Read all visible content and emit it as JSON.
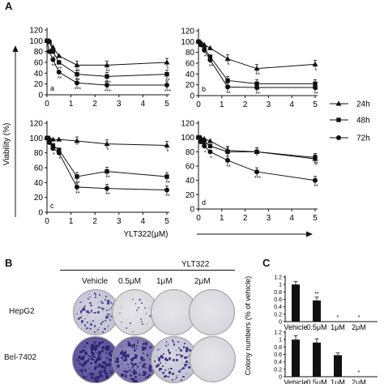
{
  "panel_a": {
    "letter": "A",
    "ylabel": "Viability (%)",
    "xlabel": "YLT322(μM)",
    "legend": [
      "24h",
      "48h",
      "72h"
    ]
  },
  "panel_b": {
    "letter": "B",
    "compound": "YLT322",
    "columns": [
      "Vehicle",
      "0.5μM",
      "1μM",
      "2μM"
    ],
    "rows": [
      "HepG2",
      "Bel-7402"
    ],
    "colony_density": {
      "HepG2": [
        "moderate",
        "sparse",
        "none",
        "none"
      ],
      "Bel-7402": [
        "dense",
        "dense",
        "moderate",
        "none"
      ]
    }
  },
  "panel_c": {
    "letter": "C",
    "ylabel": "Colony numbers (% of vehicle)"
  },
  "chart_data": [
    {
      "type": "line",
      "panel": "a",
      "x": [
        0,
        0.1,
        0.25,
        0.5,
        1.25,
        2.5,
        5
      ],
      "xlim": [
        0,
        5
      ],
      "ylim": [
        0,
        120
      ],
      "xticks": [
        "0",
        "1",
        "2",
        "3",
        "4",
        "5"
      ],
      "yticks": [
        "0",
        "20",
        "40",
        "60",
        "80",
        "100",
        "120"
      ],
      "series": [
        {
          "name": "24h",
          "marker": "triangle",
          "values": [
            100,
            100,
            88,
            72,
            55,
            55,
            60
          ],
          "sig": [
            "",
            "",
            "*",
            "*",
            "**",
            "**",
            "*"
          ]
        },
        {
          "name": "48h",
          "marker": "square",
          "values": [
            100,
            98,
            80,
            60,
            38,
            34,
            38
          ],
          "sig": [
            "",
            "",
            "*",
            "**",
            "**",
            "***",
            "**"
          ]
        },
        {
          "name": "72h",
          "marker": "circle",
          "values": [
            100,
            80,
            65,
            42,
            22,
            18,
            18
          ],
          "sig": [
            "",
            "",
            "**",
            "**",
            "***",
            "***",
            "***"
          ]
        }
      ]
    },
    {
      "type": "line",
      "panel": "b",
      "x": [
        0,
        0.1,
        0.25,
        0.5,
        1.25,
        2.5,
        5
      ],
      "xlim": [
        0,
        5
      ],
      "ylim": [
        0,
        120
      ],
      "xticks": [
        "0",
        "1",
        "2",
        "3",
        "4",
        "5"
      ],
      "yticks": [
        "0",
        "20",
        "40",
        "60",
        "80",
        "100",
        "120"
      ],
      "series": [
        {
          "name": "24h",
          "marker": "triangle",
          "values": [
            100,
            98,
            94,
            88,
            68,
            50,
            58
          ],
          "sig": [
            "",
            "",
            "",
            "",
            "*",
            "**",
            "*"
          ]
        },
        {
          "name": "48h",
          "marker": "square",
          "values": [
            100,
            96,
            88,
            72,
            28,
            22,
            22
          ],
          "sig": [
            "",
            "",
            "",
            "*",
            "**",
            "**",
            "**"
          ]
        },
        {
          "name": "72h",
          "marker": "circle",
          "values": [
            100,
            94,
            84,
            66,
            16,
            15,
            15
          ],
          "sig": [
            "",
            "",
            "*",
            "**",
            "**",
            "**",
            "**"
          ]
        }
      ]
    },
    {
      "type": "line",
      "panel": "c",
      "x": [
        0,
        0.1,
        0.25,
        0.5,
        1.25,
        2.5,
        5
      ],
      "xlim": [
        0,
        5
      ],
      "ylim": [
        0,
        120
      ],
      "xticks": [
        "0",
        "1",
        "2",
        "3",
        "4",
        "5"
      ],
      "yticks": [
        "0",
        "20",
        "40",
        "60",
        "80",
        "100",
        "120"
      ],
      "series": [
        {
          "name": "24h",
          "marker": "triangle",
          "values": [
            100,
            100,
            98,
            98,
            96,
            92,
            90
          ],
          "sig": [
            "",
            "",
            "",
            "",
            "",
            "*",
            "*"
          ]
        },
        {
          "name": "48h",
          "marker": "square",
          "values": [
            100,
            96,
            90,
            84,
            48,
            55,
            48
          ],
          "sig": [
            "",
            "",
            "",
            "*",
            "**",
            "**",
            "**"
          ]
        },
        {
          "name": "72h",
          "marker": "circle",
          "values": [
            100,
            94,
            86,
            80,
            34,
            32,
            30
          ],
          "sig": [
            "",
            "",
            "*",
            "*",
            "**",
            "**",
            "**"
          ]
        }
      ]
    },
    {
      "type": "line",
      "panel": "d",
      "x": [
        0,
        0.1,
        0.25,
        0.5,
        1.25,
        2.5,
        5
      ],
      "xlim": [
        0,
        5
      ],
      "ylim": [
        0,
        120
      ],
      "xticks": [
        "0",
        "1",
        "2",
        "3",
        "4",
        "5"
      ],
      "yticks": [
        "0",
        "20",
        "40",
        "60",
        "80",
        "100",
        "120"
      ],
      "series": [
        {
          "name": "24h",
          "marker": "triangle",
          "values": [
            100,
            100,
            98,
            95,
            82,
            80,
            70
          ],
          "sig": [
            "",
            "",
            "",
            "",
            "",
            "",
            "*"
          ]
        },
        {
          "name": "48h",
          "marker": "square",
          "values": [
            100,
            96,
            94,
            88,
            80,
            80,
            72
          ],
          "sig": [
            "",
            "",
            "",
            "",
            "",
            "",
            "**"
          ]
        },
        {
          "name": "72h",
          "marker": "circle",
          "values": [
            100,
            94,
            88,
            80,
            68,
            52,
            40
          ],
          "sig": [
            "",
            "",
            "*",
            "*",
            "**",
            "***",
            "**"
          ]
        }
      ]
    },
    {
      "type": "bar",
      "panel": "C-HepG2",
      "categories": [
        "Vehicle",
        "0.5μM",
        "1μM",
        "2μM"
      ],
      "values": [
        1.0,
        0.57,
        0.0,
        0.0
      ],
      "errors": [
        0.08,
        0.09,
        0,
        0
      ],
      "sig": [
        "",
        "**",
        "*",
        "*"
      ],
      "ylim": [
        0,
        1.2
      ],
      "yticks": [
        "0",
        "0.2",
        "0.4",
        "0.6",
        "0.8",
        "1",
        "1.2"
      ]
    },
    {
      "type": "bar",
      "panel": "C-Bel-7402",
      "categories": [
        "Vehicle",
        "0.5μM",
        "1μM",
        "2μM"
      ],
      "values": [
        1.0,
        0.92,
        0.58,
        0.0
      ],
      "errors": [
        0.1,
        0.1,
        0.06,
        0
      ],
      "sig": [
        "",
        "",
        "",
        "*"
      ],
      "ylim": [
        0,
        1.2
      ],
      "yticks": [
        "0",
        "0.2",
        "0.4",
        "0.6",
        "0.8",
        "1",
        "1.2"
      ]
    }
  ]
}
